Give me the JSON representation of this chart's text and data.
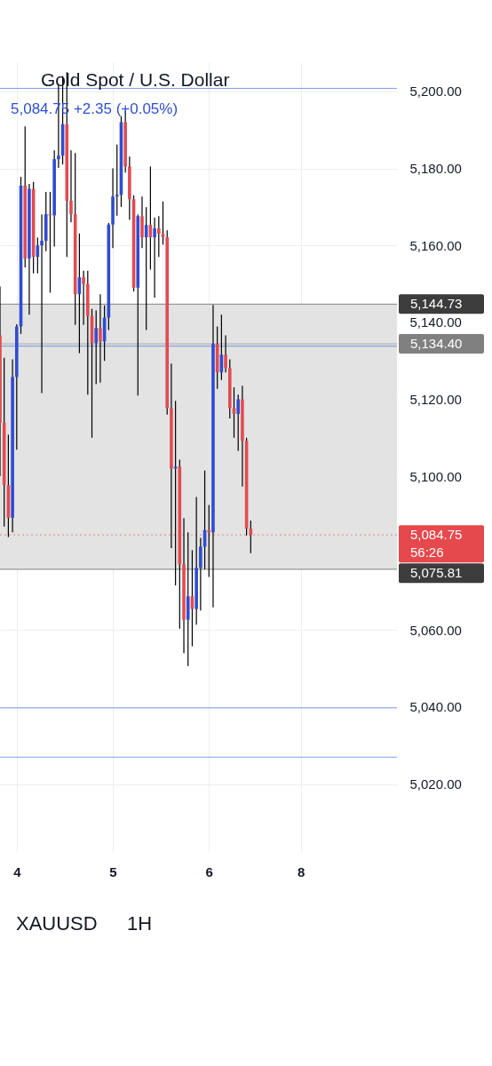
{
  "chart_data": {
    "type": "candlestick",
    "title": "Gold Spot / U.S. Dollar",
    "subtitle": "5,084.75 +2.35 (+0.05%)",
    "categories": [
      null,
      null,
      null,
      null,
      "4",
      null,
      null,
      null,
      null,
      null,
      null,
      null,
      null,
      null,
      null,
      null,
      null,
      null,
      null,
      null,
      null,
      null,
      null,
      null,
      null,
      null,
      null,
      "5",
      null,
      null,
      null,
      null,
      null,
      null,
      null,
      null,
      null,
      null,
      null,
      null,
      null,
      null,
      null,
      null,
      null,
      null,
      null,
      null,
      null,
      null,
      "6",
      null,
      null,
      null,
      null,
      null,
      null,
      null,
      null,
      null,
      null,
      null,
      null,
      null,
      null,
      null,
      null,
      null,
      null,
      null,
      null,
      null,
      "8",
      null,
      null,
      null,
      null,
      null,
      null,
      null,
      null,
      null,
      null,
      null,
      null,
      null,
      null,
      null,
      null,
      null,
      null,
      null,
      null,
      null,
      null,
      null
    ],
    "ohlc": [
      [
        5136.6,
        5149.3,
        5100.0,
        5113.9
      ],
      [
        5113.9,
        5130.8,
        5086.9,
        5097.7
      ],
      [
        5097.7,
        5110.8,
        5084.2,
        5089.2
      ],
      [
        5089.2,
        5130.4,
        5085.4,
        5125.8
      ],
      [
        5125.8,
        5139.5,
        5106.9,
        5138.9
      ],
      [
        5138.9,
        5177.8,
        5137.0,
        5175.5
      ],
      [
        5175.5,
        5190.9,
        5154.3,
        5156.6
      ],
      [
        5156.6,
        5176.0,
        5142.0,
        5174.7
      ],
      [
        5174.7,
        5176.5,
        5152.7,
        5157.0
      ],
      [
        5157.0,
        5162.0,
        5152.7,
        5160.0
      ],
      [
        5160.0,
        5168.0,
        5121.6,
        5161.2
      ],
      [
        5161.2,
        5173.9,
        5158.5,
        5168.1
      ],
      [
        5168.1,
        5173.9,
        5147.7,
        5167.8
      ],
      [
        5167.8,
        5184.7,
        5159.7,
        5182.4
      ],
      [
        5182.4,
        5202.0,
        5180.1,
        5183.3
      ],
      [
        5183.3,
        5204.0,
        5181.0,
        5191.5
      ],
      [
        5191.5,
        5205.0,
        5157.0,
        5171.6
      ],
      [
        5171.6,
        5184.7,
        5166.0,
        5168.1
      ],
      [
        5168.1,
        5184.0,
        5139.3,
        5147.3
      ],
      [
        5147.3,
        5163.1,
        5132.0,
        5151.7
      ],
      [
        5151.7,
        5153.4,
        5139.3,
        5150.0
      ],
      [
        5150.0,
        5153.4,
        5121.2,
        5141.6
      ],
      [
        5141.6,
        5143.5,
        5110.0,
        5134.6
      ],
      [
        5134.6,
        5143.1,
        5123.9,
        5138.5
      ],
      [
        5138.5,
        5147.3,
        5124.3,
        5135.0
      ],
      [
        5135.0,
        5144.4,
        5130.0,
        5141.2
      ],
      [
        5141.2,
        5165.8,
        5138.0,
        5165.4
      ],
      [
        5165.4,
        5180.0,
        5159.3,
        5172.7
      ],
      [
        5172.7,
        5186.2,
        5167.7,
        5173.1
      ],
      [
        5173.1,
        5193.5,
        5170.0,
        5192.0
      ],
      [
        5192.0,
        5195.1,
        5178.9,
        5180.5
      ],
      [
        5180.5,
        5183.1,
        5166.6,
        5172.0
      ],
      [
        5172.0,
        5173.0,
        5148.0,
        5149.0
      ],
      [
        5149.0,
        5168.0,
        5121.0,
        5167.6
      ],
      [
        5167.6,
        5172.7,
        5159.3,
        5162.1
      ],
      [
        5162.1,
        5169.9,
        5138.0,
        5165.3
      ],
      [
        5165.3,
        5180.5,
        5153.7,
        5162.1
      ],
      [
        5162.1,
        5167.2,
        5146.4,
        5164.4
      ],
      [
        5164.4,
        5167.6,
        5157.0,
        5163.0
      ],
      [
        5163.0,
        5171.4,
        5160.2,
        5162.1
      ],
      [
        5162.1,
        5163.9,
        5116.0,
        5117.7
      ],
      [
        5117.7,
        5129.3,
        5081.3,
        5102.0
      ],
      [
        5102.0,
        5119.6,
        5071.6,
        5102.5
      ],
      [
        5102.5,
        5104.3,
        5060.4,
        5077.1
      ],
      [
        5077.1,
        5089.1,
        5054.0,
        5062.7
      ],
      [
        5062.7,
        5085.4,
        5050.7,
        5068.8
      ],
      [
        5068.8,
        5080.8,
        5055.8,
        5065.5
      ],
      [
        5065.5,
        5094.6,
        5061.4,
        5076.2
      ],
      [
        5076.2,
        5084.0,
        5065.1,
        5081.7
      ],
      [
        5081.7,
        5101.5,
        5075.8,
        5086.0
      ],
      [
        5086.0,
        5092.5,
        5073.8,
        5085.4
      ],
      [
        5085.4,
        5144.5,
        5065.9,
        5134.4
      ],
      [
        5134.4,
        5138.9,
        5122.7,
        5127.0
      ],
      [
        5127.0,
        5142.0,
        5125.0,
        5131.6
      ],
      [
        5131.6,
        5136.6,
        5127.0,
        5128.1
      ],
      [
        5128.1,
        5130.4,
        5115.0,
        5117.7
      ],
      [
        5117.7,
        5123.1,
        5110.0,
        5116.2
      ],
      [
        5116.2,
        5121.2,
        5106.6,
        5120.0
      ],
      [
        5120.0,
        5123.5,
        5097.3,
        5109.2
      ],
      [
        5109.2,
        5110.0,
        5084.6,
        5086.4
      ],
      [
        5086.4,
        5088.5,
        5080.0,
        5084.75
      ],
      null,
      null,
      null,
      null,
      null,
      null,
      null,
      null,
      null,
      null,
      null,
      null,
      null,
      null,
      null,
      null,
      null,
      null,
      null,
      null,
      null,
      null,
      null,
      null,
      null,
      null,
      null,
      null,
      null,
      null,
      null,
      null,
      null,
      null,
      null
    ],
    "colors": [
      "#e14b52",
      "#e14b52",
      "#e14b52",
      "#2f4cd0",
      "#2f4cd0",
      "#2f4cd0",
      "#e14b52",
      "#2f4cd0",
      "#e14b52",
      "#2f4cd0",
      "#2f4cd0",
      "#2f4cd0",
      "#e14b52",
      "#2f4cd0",
      "#2f4cd0",
      "#2f4cd0",
      "#e14b52",
      "#e14b52",
      "#e14b52",
      "#2f4cd0",
      "#e14b52",
      "#e14b52",
      "#e14b52",
      "#2f4cd0",
      "#e14b52",
      "#2f4cd0",
      "#2f4cd0",
      "#2f4cd0",
      "#2f4cd0",
      "#2f4cd0",
      "#e14b52",
      "#e14b52",
      "#e14b52",
      "#2f4cd0",
      "#e14b52",
      "#2f4cd0",
      "#e14b52",
      "#2f4cd0",
      "#e14b52",
      "#e14b52",
      "#e14b52",
      "#e14b52",
      "#2f4cd0",
      "#e14b52",
      "#e14b52",
      "#2f4cd0",
      "#e14b52",
      "#2f4cd0",
      "#2f4cd0",
      "#2f4cd0",
      "#e14b52",
      "#2f4cd0",
      "#e14b52",
      "#2f4cd0",
      "#e14b52",
      "#e14b52",
      "#e14b52",
      "#2f4cd0",
      "#e14b52",
      "#e14b52",
      "#e14b52",
      null,
      null,
      null,
      null,
      null,
      null,
      null,
      null,
      null,
      null,
      null,
      null,
      null,
      null,
      null,
      null,
      null,
      null,
      null,
      null,
      null,
      null,
      null,
      null,
      null,
      null,
      null,
      null,
      null,
      null,
      null,
      null,
      null,
      null,
      null
    ],
    "ylim": [
      5002.6,
      5207.6
    ],
    "yticks": [
      {
        "value": 5020,
        "label": "5,020.00"
      },
      {
        "value": 5040,
        "label": "5,040.00"
      },
      {
        "value": 5060,
        "label": "5,060.00"
      },
      {
        "value": 5080,
        "label": null
      },
      {
        "value": 5100,
        "label": "5,100.00"
      },
      {
        "value": 5120,
        "label": "5,120.00"
      },
      {
        "value": 5140,
        "label": "5,140.00"
      },
      {
        "value": 5160,
        "label": "5,160.00"
      },
      {
        "value": 5180,
        "label": "5,180.00"
      },
      {
        "value": 5200,
        "label": "5,200.00"
      }
    ],
    "grid": true,
    "bands": [
      {
        "axis": "y",
        "from": 5075.81,
        "to": 5144.73,
        "color": "#e3e3e3"
      }
    ],
    "ref_lines": [
      {
        "axis": "y",
        "value": 5200.8,
        "color": "#2a5bd7"
      },
      {
        "axis": "y",
        "value": 5133.8,
        "color": "#2a5bd7"
      },
      {
        "axis": "y",
        "value": 5039.8,
        "color": "#2a5bd7"
      },
      {
        "axis": "y",
        "value": 5027.0,
        "color": "#2a5bd7"
      },
      {
        "axis": "y",
        "value": 5144.73,
        "label": "5,144.73",
        "color": "#3c3c3c"
      },
      {
        "axis": "y",
        "value": 5134.4,
        "label": "5,134.40",
        "color": "#808080"
      },
      {
        "axis": "y",
        "value": 5084.75,
        "label": "5,084.75\n56:26",
        "color": "#e5484d",
        "line_style": "dotted"
      },
      {
        "axis": "y",
        "value": 5075.81,
        "label": "5,075.81",
        "color": "#3c3c3c"
      }
    ],
    "annotations": [
      "XAUUSD",
      "1H"
    ]
  }
}
